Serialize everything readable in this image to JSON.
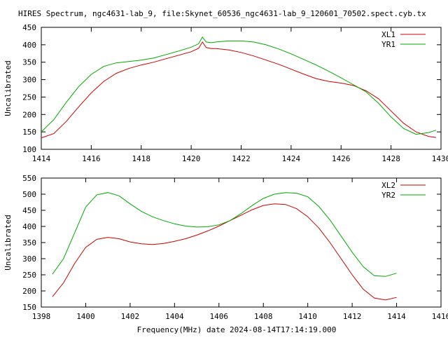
{
  "page": {
    "title": "HIRES Spectrum, ngc4631-lab_9, file:Skynet_60536_ngc4631-lab_9_120601_70502.spect.cyb.tx",
    "xlabel": "Frequency(MHz) date 2024-08-14T17:14:19.000"
  },
  "chart_data": [
    {
      "type": "line",
      "title": "HIRES Spectrum, ngc4631-lab_9, file:Skynet_60536_ngc4631-lab_9_120601_70502.spect.cyb.tx",
      "xlabel": "",
      "ylabel": "Uncalibrated",
      "xlim": [
        1414,
        1430
      ],
      "ylim": [
        100,
        450
      ],
      "xticks": [
        1414,
        1416,
        1418,
        1420,
        1422,
        1424,
        1426,
        1428,
        1430
      ],
      "yticks": [
        100,
        150,
        200,
        250,
        300,
        350,
        400,
        450
      ],
      "legend": "top-right",
      "grid": false,
      "series": [
        {
          "name": "XL1",
          "color": "#cc0000",
          "x": [
            1414.0,
            1414.5,
            1415.0,
            1415.5,
            1416.0,
            1416.5,
            1417.0,
            1417.5,
            1418.0,
            1418.5,
            1419.0,
            1419.5,
            1420.0,
            1420.3,
            1420.45,
            1420.6,
            1420.8,
            1421.0,
            1421.5,
            1422.0,
            1422.5,
            1423.0,
            1423.5,
            1424.0,
            1424.5,
            1425.0,
            1425.5,
            1426.0,
            1426.5,
            1427.0,
            1427.5,
            1428.0,
            1428.5,
            1429.0,
            1429.5,
            1429.8
          ],
          "y": [
            133,
            145,
            180,
            222,
            262,
            295,
            318,
            332,
            342,
            350,
            360,
            370,
            380,
            390,
            408,
            392,
            389,
            389,
            385,
            378,
            368,
            356,
            344,
            330,
            316,
            303,
            295,
            290,
            283,
            268,
            245,
            210,
            175,
            150,
            137,
            134
          ]
        },
        {
          "name": "YR1",
          "color": "#00aa00",
          "x": [
            1414.0,
            1414.5,
            1415.0,
            1415.5,
            1416.0,
            1416.5,
            1417.0,
            1417.5,
            1418.0,
            1418.5,
            1419.0,
            1419.5,
            1420.0,
            1420.3,
            1420.45,
            1420.6,
            1420.8,
            1421.0,
            1421.5,
            1422.0,
            1422.5,
            1423.0,
            1423.5,
            1424.0,
            1424.5,
            1425.0,
            1425.5,
            1426.0,
            1426.5,
            1427.0,
            1427.5,
            1428.0,
            1428.5,
            1429.0,
            1429.5,
            1429.8
          ],
          "y": [
            150,
            185,
            235,
            280,
            315,
            338,
            348,
            352,
            356,
            362,
            372,
            382,
            393,
            403,
            422,
            408,
            406,
            408,
            411,
            411,
            408,
            400,
            388,
            374,
            358,
            342,
            324,
            305,
            285,
            265,
            232,
            193,
            160,
            143,
            148,
            155
          ]
        }
      ]
    },
    {
      "type": "line",
      "title": "",
      "xlabel": "Frequency(MHz) date 2024-08-14T17:14:19.000",
      "ylabel": "Uncalibrated",
      "xlim": [
        1398,
        1416
      ],
      "ylim": [
        150,
        550
      ],
      "xticks": [
        1398,
        1400,
        1402,
        1404,
        1406,
        1408,
        1410,
        1412,
        1414,
        1416
      ],
      "yticks": [
        150,
        200,
        250,
        300,
        350,
        400,
        450,
        500,
        550
      ],
      "legend": "top-right",
      "grid": false,
      "series": [
        {
          "name": "XL2",
          "color": "#cc0000",
          "x": [
            1398.5,
            1399.0,
            1399.5,
            1400.0,
            1400.5,
            1401.0,
            1401.5,
            1402.0,
            1402.5,
            1403.0,
            1403.5,
            1404.0,
            1404.5,
            1405.0,
            1405.5,
            1406.0,
            1406.5,
            1407.0,
            1407.5,
            1408.0,
            1408.5,
            1409.0,
            1409.5,
            1410.0,
            1410.5,
            1411.0,
            1411.5,
            1412.0,
            1412.5,
            1413.0,
            1413.5,
            1414.0
          ],
          "y": [
            182,
            225,
            285,
            335,
            360,
            366,
            362,
            352,
            346,
            344,
            347,
            354,
            362,
            373,
            386,
            401,
            418,
            435,
            452,
            465,
            470,
            468,
            455,
            430,
            395,
            350,
            300,
            250,
            205,
            178,
            172,
            180
          ]
        },
        {
          "name": "YR2",
          "color": "#00aa00",
          "x": [
            1398.5,
            1399.0,
            1399.5,
            1400.0,
            1400.5,
            1401.0,
            1401.5,
            1402.0,
            1402.5,
            1403.0,
            1403.5,
            1404.0,
            1404.5,
            1405.0,
            1405.5,
            1406.0,
            1406.5,
            1407.0,
            1407.5,
            1408.0,
            1408.5,
            1409.0,
            1409.5,
            1410.0,
            1410.5,
            1411.0,
            1411.5,
            1412.0,
            1412.5,
            1413.0,
            1413.5,
            1414.0
          ],
          "y": [
            252,
            300,
            380,
            460,
            498,
            505,
            495,
            470,
            447,
            430,
            418,
            408,
            401,
            398,
            399,
            405,
            418,
            440,
            465,
            487,
            500,
            505,
            503,
            492,
            462,
            420,
            370,
            320,
            275,
            247,
            245,
            255
          ]
        }
      ]
    }
  ]
}
